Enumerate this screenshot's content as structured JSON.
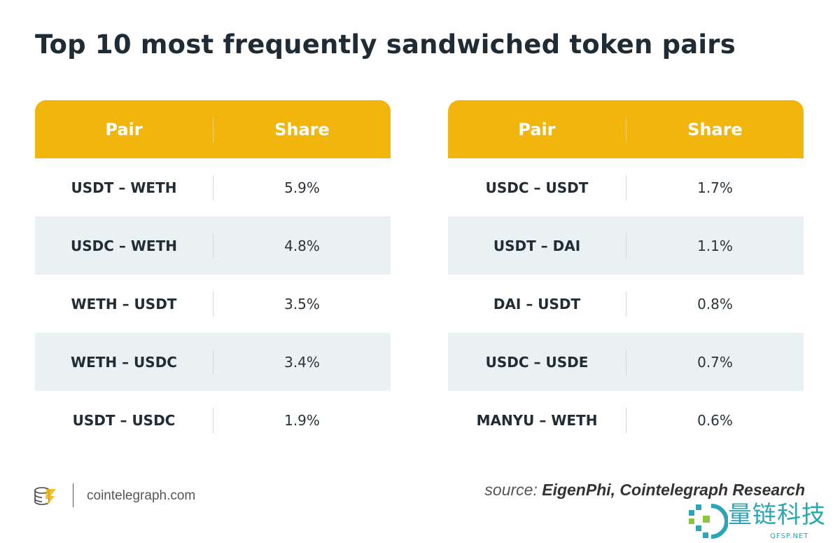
{
  "title": "Top 10 most frequently sandwiched token pairs",
  "colors": {
    "header": "#f2b50c",
    "row_alt": "#e9f1f2",
    "text": "#1f2b35"
  },
  "chart_data": {
    "type": "table",
    "title": "Top 10 most frequently sandwiched token pairs",
    "columns": [
      "Pair",
      "Share"
    ],
    "tables": [
      {
        "header": {
          "pair": "Pair",
          "share": "Share"
        },
        "rows": [
          {
            "pair": "USDT – WETH",
            "share": "5.9%"
          },
          {
            "pair": "USDC – WETH",
            "share": "4.8%"
          },
          {
            "pair": "WETH – USDT",
            "share": "3.5%"
          },
          {
            "pair": "WETH – USDC",
            "share": "3.4%"
          },
          {
            "pair": "USDT – USDC",
            "share": "1.9%"
          }
        ]
      },
      {
        "header": {
          "pair": "Pair",
          "share": "Share"
        },
        "rows": [
          {
            "pair": "USDC – USDT",
            "share": "1.7%"
          },
          {
            "pair": "USDT – DAI",
            "share": "1.1%"
          },
          {
            "pair": "DAI – USDT",
            "share": "0.8%"
          },
          {
            "pair": "USDC – USDE",
            "share": "0.7%"
          },
          {
            "pair": "MANYU – WETH",
            "share": "0.6%"
          }
        ]
      }
    ]
  },
  "footer": {
    "site": "cointelegraph.com",
    "source_prefix": "source:",
    "source": "EigenPhi, Cointelegraph Research",
    "logo_icon": "cointelegraph-logo-icon"
  },
  "watermark": {
    "text": "量链科技",
    "sub": "QFSP.NET"
  }
}
